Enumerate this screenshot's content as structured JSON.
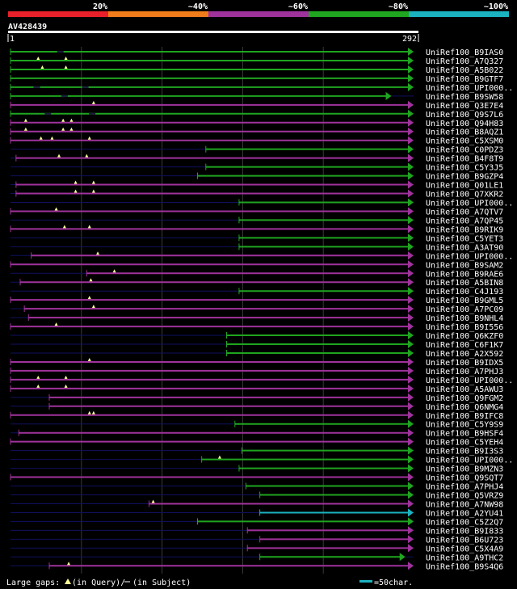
{
  "chart_data": {
    "type": "alignment-overview",
    "query_id": "AV428439",
    "query_start": "1",
    "query_end": "292",
    "query_length": 292,
    "identity_legend": [
      {
        "label": "20%",
        "color": "#e8202a"
      },
      {
        "label": "~40%",
        "color": "#f07c1a"
      },
      {
        "label": "~60%",
        "color": "#a0329c"
      },
      {
        "label": "~80%",
        "color": "#1fa51f"
      },
      {
        "label": "~100%",
        "color": "#1bb3c0"
      }
    ],
    "colors": {
      "green": "#1fa51f",
      "purple": "#a0329c",
      "cyan": "#1bb3c0",
      "navy": "#101060",
      "grid": "#3a3a3a",
      "marker": "#ffff99"
    },
    "hits": [
      {
        "name": "UniRef100_B9IAS0",
        "start": 1,
        "end": 292,
        "color": "green",
        "gaps_query": [],
        "gaps_subject": [
          37
        ]
      },
      {
        "name": "UniRef100_A7Q327",
        "start": 1,
        "end": 292,
        "color": "green",
        "gaps_query": [
          21,
          41
        ],
        "gaps_subject": []
      },
      {
        "name": "UniRef100_A5B022",
        "start": 1,
        "end": 292,
        "color": "green",
        "gaps_query": [
          24,
          41
        ],
        "gaps_subject": []
      },
      {
        "name": "UniRef100_B9GTF7",
        "start": 1,
        "end": 292,
        "color": "green",
        "gaps_query": [],
        "gaps_subject": []
      },
      {
        "name": "UniRef100_UPI000..",
        "start": 1,
        "end": 292,
        "color": "green",
        "gaps_query": [],
        "gaps_subject": [
          20,
          55
        ]
      },
      {
        "name": "UniRef100_B9SW58",
        "start": 1,
        "end": 276,
        "color": "green",
        "gaps_query": [],
        "gaps_subject": [
          40
        ]
      },
      {
        "name": "UniRef100_Q3E7E4",
        "start": 1,
        "end": 292,
        "color": "purple",
        "gaps_query": [
          61
        ],
        "gaps_subject": []
      },
      {
        "name": "UniRef100_Q9S7L6",
        "start": 1,
        "end": 292,
        "color": "green",
        "gaps_query": [],
        "gaps_subject": [
          28,
          60
        ]
      },
      {
        "name": "UniRef100_Q94H83",
        "start": 1,
        "end": 292,
        "color": "purple",
        "gaps_query": [
          12,
          39,
          45
        ],
        "gaps_subject": []
      },
      {
        "name": "UniRef100_B8AQZ1",
        "start": 1,
        "end": 292,
        "color": "purple",
        "gaps_query": [
          12,
          39,
          45
        ],
        "gaps_subject": []
      },
      {
        "name": "UniRef100_C5XSM0",
        "start": 1,
        "end": 292,
        "color": "purple",
        "gaps_query": [
          23,
          31,
          58
        ],
        "gaps_subject": []
      },
      {
        "name": "UniRef100_C0PDZ3",
        "start": 142,
        "end": 292,
        "color": "green",
        "gaps_query": [],
        "gaps_subject": []
      },
      {
        "name": "UniRef100_B4F8T9",
        "start": 5,
        "end": 292,
        "color": "purple",
        "gaps_query": [
          36,
          56
        ],
        "gaps_subject": []
      },
      {
        "name": "UniRef100_C5Y3J5",
        "start": 142,
        "end": 292,
        "color": "green",
        "gaps_query": [],
        "gaps_subject": []
      },
      {
        "name": "UniRef100_B9GZP4",
        "start": 136,
        "end": 292,
        "color": "green",
        "gaps_query": [],
        "gaps_subject": []
      },
      {
        "name": "UniRef100_Q01LE1",
        "start": 5,
        "end": 292,
        "color": "purple",
        "gaps_query": [
          48,
          61
        ],
        "gaps_subject": []
      },
      {
        "name": "UniRef100_Q7XKR2",
        "start": 5,
        "end": 292,
        "color": "purple",
        "gaps_query": [
          48,
          61
        ],
        "gaps_subject": []
      },
      {
        "name": "UniRef100_UPI000..",
        "start": 166,
        "end": 292,
        "color": "green",
        "gaps_query": [],
        "gaps_subject": []
      },
      {
        "name": "UniRef100_A7QTV7",
        "start": 1,
        "end": 292,
        "color": "purple",
        "gaps_query": [
          34
        ],
        "gaps_subject": []
      },
      {
        "name": "UniRef100_A7QP45",
        "start": 166,
        "end": 292,
        "color": "green",
        "gaps_query": [],
        "gaps_subject": []
      },
      {
        "name": "UniRef100_B9RIK9",
        "start": 1,
        "end": 292,
        "color": "purple",
        "gaps_query": [
          40,
          58
        ],
        "gaps_subject": []
      },
      {
        "name": "UniRef100_C5YET3",
        "start": 166,
        "end": 292,
        "color": "green",
        "gaps_query": [],
        "gaps_subject": []
      },
      {
        "name": "UniRef100_A3AT90",
        "start": 166,
        "end": 292,
        "color": "green",
        "gaps_query": [],
        "gaps_subject": []
      },
      {
        "name": "UniRef100_UPI000..",
        "start": 16,
        "end": 292,
        "color": "purple",
        "gaps_query": [
          64
        ],
        "gaps_subject": []
      },
      {
        "name": "UniRef100_B9SAM2",
        "start": 1,
        "end": 292,
        "color": "purple",
        "gaps_query": [],
        "gaps_subject": []
      },
      {
        "name": "UniRef100_B9RAE6",
        "start": 56,
        "end": 292,
        "color": "purple",
        "gaps_query": [
          76
        ],
        "gaps_subject": []
      },
      {
        "name": "UniRef100_A5BIN8",
        "start": 8,
        "end": 292,
        "color": "purple",
        "gaps_query": [
          59
        ],
        "gaps_subject": []
      },
      {
        "name": "UniRef100_C4J193",
        "start": 166,
        "end": 292,
        "color": "green",
        "gaps_query": [],
        "gaps_subject": []
      },
      {
        "name": "UniRef100_B9GML5",
        "start": 1,
        "end": 292,
        "color": "purple",
        "gaps_query": [
          58
        ],
        "gaps_subject": []
      },
      {
        "name": "UniRef100_A7PC09",
        "start": 11,
        "end": 292,
        "color": "purple",
        "gaps_query": [
          61
        ],
        "gaps_subject": []
      },
      {
        "name": "UniRef100_B9NHL4",
        "start": 14,
        "end": 292,
        "color": "purple",
        "gaps_query": [],
        "gaps_subject": []
      },
      {
        "name": "UniRef100_B9I556",
        "start": 1,
        "end": 292,
        "color": "purple",
        "gaps_query": [
          34
        ],
        "gaps_subject": []
      },
      {
        "name": "UniRef100_Q6KZF0",
        "start": 157,
        "end": 292,
        "color": "green",
        "gaps_query": [],
        "gaps_subject": []
      },
      {
        "name": "UniRef100_C6F1K7",
        "start": 157,
        "end": 292,
        "color": "green",
        "gaps_query": [],
        "gaps_subject": []
      },
      {
        "name": "UniRef100_A2X592",
        "start": 157,
        "end": 292,
        "color": "green",
        "gaps_query": [],
        "gaps_subject": []
      },
      {
        "name": "UniRef100_B9IDX5",
        "start": 1,
        "end": 292,
        "color": "purple",
        "gaps_query": [
          58
        ],
        "gaps_subject": []
      },
      {
        "name": "UniRef100_A7PHJ3",
        "start": 1,
        "end": 292,
        "color": "purple",
        "gaps_query": [],
        "gaps_subject": []
      },
      {
        "name": "UniRef100_UPI000..",
        "start": 1,
        "end": 292,
        "color": "purple",
        "gaps_query": [
          21,
          41
        ],
        "gaps_subject": []
      },
      {
        "name": "UniRef100_A5AWU3",
        "start": 1,
        "end": 292,
        "color": "purple",
        "gaps_query": [
          21,
          41
        ],
        "gaps_subject": []
      },
      {
        "name": "UniRef100_Q9FGM2",
        "start": 29,
        "end": 292,
        "color": "purple",
        "gaps_query": [],
        "gaps_subject": []
      },
      {
        "name": "UniRef100_Q6NMG4",
        "start": 29,
        "end": 292,
        "color": "purple",
        "gaps_query": [],
        "gaps_subject": []
      },
      {
        "name": "UniRef100_B9IFC8",
        "start": 1,
        "end": 292,
        "color": "purple",
        "gaps_query": [
          58,
          61
        ],
        "gaps_subject": []
      },
      {
        "name": "UniRef100_C5Y9S9",
        "start": 163,
        "end": 292,
        "color": "green",
        "gaps_query": [],
        "gaps_subject": []
      },
      {
        "name": "UniRef100_B9HSF4",
        "start": 7,
        "end": 292,
        "color": "purple",
        "gaps_query": [],
        "gaps_subject": []
      },
      {
        "name": "UniRef100_C5YEH4",
        "start": 1,
        "end": 292,
        "color": "purple",
        "gaps_query": [],
        "gaps_subject": []
      },
      {
        "name": "UniRef100_B9I3S3",
        "start": 168,
        "end": 292,
        "color": "green",
        "gaps_query": [],
        "gaps_subject": []
      },
      {
        "name": "UniRef100_UPI000..",
        "start": 139,
        "end": 292,
        "color": "green",
        "gaps_query": [
          152
        ],
        "gaps_subject": []
      },
      {
        "name": "UniRef100_B9MZN3",
        "start": 166,
        "end": 292,
        "color": "green",
        "gaps_query": [],
        "gaps_subject": []
      },
      {
        "name": "UniRef100_Q9SQT7",
        "start": 1,
        "end": 292,
        "color": "purple",
        "gaps_query": [],
        "gaps_subject": []
      },
      {
        "name": "UniRef100_A7PHJ4",
        "start": 171,
        "end": 292,
        "color": "green",
        "gaps_query": [],
        "gaps_subject": []
      },
      {
        "name": "UniRef100_Q5VRZ9",
        "start": 181,
        "end": 292,
        "color": "green",
        "gaps_query": [],
        "gaps_subject": []
      },
      {
        "name": "UniRef100_A7NW98",
        "start": 101,
        "end": 292,
        "color": "purple",
        "gaps_query": [
          104
        ],
        "gaps_subject": []
      },
      {
        "name": "UniRef100_A2YU41",
        "start": 181,
        "end": 292,
        "color": "cyan",
        "gaps_query": [],
        "gaps_subject": []
      },
      {
        "name": "UniRef100_C5Z2Q7",
        "start": 136,
        "end": 292,
        "color": "green",
        "gaps_query": [],
        "gaps_subject": []
      },
      {
        "name": "UniRef100_B9I833",
        "start": 172,
        "end": 292,
        "color": "purple",
        "gaps_query": [],
        "gaps_subject": []
      },
      {
        "name": "UniRef100_B6U723",
        "start": 181,
        "end": 292,
        "color": "purple",
        "gaps_query": [],
        "gaps_subject": []
      },
      {
        "name": "UniRef100_C5X4A9",
        "start": 172,
        "end": 292,
        "color": "purple",
        "gaps_query": [],
        "gaps_subject": []
      },
      {
        "name": "UniRef100_A9THC2",
        "start": 181,
        "end": 286,
        "color": "green",
        "gaps_query": [],
        "gaps_subject": []
      },
      {
        "name": "UniRef100_B9S4Q6",
        "start": 29,
        "end": 292,
        "color": "purple",
        "gaps_query": [
          43
        ],
        "gaps_subject": []
      }
    ],
    "footer": {
      "gaps_label": "Large gaps:",
      "gaps_query_label": "(in Query)/",
      "gaps_subject_label": "(in Subject)",
      "scale_label": "=50char."
    }
  }
}
